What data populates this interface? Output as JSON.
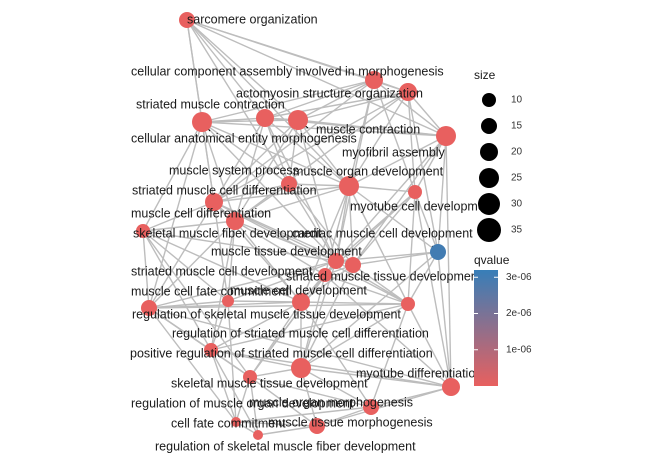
{
  "network": {
    "edge_color": "#bdbdbd",
    "nodes": [
      {
        "id": "sarcomere",
        "label": "sarcomere organization",
        "qvalue": 0.0
      },
      {
        "id": "ccab",
        "label": "cellular component assembly involved in morphogenesis",
        "qvalue": 0.0
      },
      {
        "id": "actomyosin",
        "label": "actomyosin structure organization",
        "qvalue": 0.0
      },
      {
        "id": "smc",
        "label": "striated muscle contraction",
        "qvalue": 0.0
      },
      {
        "id": "mcontr",
        "label": "muscle contraction",
        "qvalue": 0.0
      },
      {
        "id": "caem",
        "label": "cellular anatomical entity morphogenesis",
        "qvalue": 0.0
      },
      {
        "id": "myofibril",
        "label": "myofibril assembly",
        "qvalue": 0.0
      },
      {
        "id": "msp",
        "label": "muscle system process",
        "qvalue": 0.0
      },
      {
        "id": "mod",
        "label": "muscle organ development",
        "qvalue": 0.0
      },
      {
        "id": "smcd",
        "label": "striated muscle cell differentiation",
        "qvalue": 0.0
      },
      {
        "id": "myotubecd",
        "label": "myotube cell development",
        "qvalue": 0.0
      },
      {
        "id": "mcd",
        "label": "muscle cell differentiation",
        "qvalue": 0.0
      },
      {
        "id": "skmfd",
        "label": "skeletal muscle fiber development",
        "qvalue": 0.0
      },
      {
        "id": "cmcd",
        "label": "cardiac muscle cell development",
        "qvalue": 3e-06
      },
      {
        "id": "mtd",
        "label": "muscle tissue development",
        "qvalue": 0.0
      },
      {
        "id": "smcdev",
        "label": "striated muscle cell development",
        "qvalue": 0.0
      },
      {
        "id": "smtd",
        "label": "striated muscle tissue development",
        "qvalue": 0.0
      },
      {
        "id": "mcfc",
        "label": "muscle cell fate commitment",
        "qvalue": 0.0
      },
      {
        "id": "mcdev",
        "label": "muscle cell development",
        "qvalue": 0.0
      },
      {
        "id": "rsmd",
        "label": "regulation of skeletal muscle tissue development",
        "qvalue": 0.0
      },
      {
        "id": "regsmcd",
        "label": "regulation of striated muscle cell differentiation",
        "qvalue": 0.0
      },
      {
        "id": "posregsmcd",
        "label": "positive regulation of striated muscle cell differentiation",
        "qvalue": 0.0
      },
      {
        "id": "myotubediff",
        "label": "myotube differentiation",
        "qvalue": 0.0
      },
      {
        "id": "sktd",
        "label": "skeletal muscle tissue development",
        "qvalue": 0.0
      },
      {
        "id": "regmuscle",
        "label": "regulation of muscle organ development",
        "qvalue": 0.0
      },
      {
        "id": "morphog",
        "label": "muscle organ morphogenesis",
        "qvalue": 0.0
      },
      {
        "id": "cfc",
        "label": "cell fate commitment",
        "qvalue": 0.0
      },
      {
        "id": "mtm",
        "label": "muscle tissue morphogenesis",
        "qvalue": 0.0
      },
      {
        "id": "rsmfd",
        "label": "regulation of skeletal muscle fiber development",
        "qvalue": 0.0
      }
    ]
  },
  "legend": {
    "size": {
      "title": "size",
      "items": [
        {
          "label": "10",
          "value": 10
        },
        {
          "label": "15",
          "value": 15
        },
        {
          "label": "20",
          "value": 20
        },
        {
          "label": "25",
          "value": 25
        },
        {
          "label": "30",
          "value": 30
        },
        {
          "label": "35",
          "value": 35
        }
      ]
    },
    "qvalue": {
      "title": "qvalue",
      "ticks": [
        {
          "label": "3e-06",
          "value": 3e-06
        },
        {
          "label": "2e-06",
          "value": 2e-06
        },
        {
          "label": "1e-06",
          "value": 1e-06
        }
      ],
      "range": [
        0,
        3.2e-06
      ],
      "color_high": "#377eb8",
      "color_low": "#e8605f"
    }
  }
}
